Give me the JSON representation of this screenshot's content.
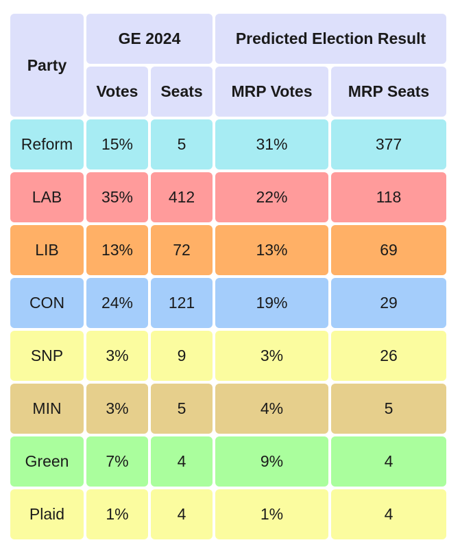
{
  "header": {
    "party": "Party",
    "ge_group": "GE 2024",
    "predicted_group": "Predicted Election Result",
    "votes": "Votes",
    "seats": "Seats",
    "mrp_votes": "MRP Votes",
    "mrp_seats": "MRP Seats"
  },
  "rows": [
    {
      "party": "Reform",
      "votes": "15%",
      "seats": "5",
      "mrp_votes": "31%",
      "mrp_seats": "377",
      "color": "#a7ecf3"
    },
    {
      "party": "LAB",
      "votes": "35%",
      "seats": "412",
      "mrp_votes": "22%",
      "mrp_seats": "118",
      "color": "#ff9b9b"
    },
    {
      "party": "LIB",
      "votes": "13%",
      "seats": "72",
      "mrp_votes": "13%",
      "mrp_seats": "69",
      "color": "#ffb066"
    },
    {
      "party": "CON",
      "votes": "24%",
      "seats": "121",
      "mrp_votes": "19%",
      "mrp_seats": "29",
      "color": "#a4cdfb"
    },
    {
      "party": "SNP",
      "votes": "3%",
      "seats": "9",
      "mrp_votes": "3%",
      "mrp_seats": "26",
      "color": "#fbfc9f"
    },
    {
      "party": "MIN",
      "votes": "3%",
      "seats": "5",
      "mrp_votes": "4%",
      "mrp_seats": "5",
      "color": "#e6cf8c"
    },
    {
      "party": "Green",
      "votes": "7%",
      "seats": "4",
      "mrp_votes": "9%",
      "mrp_seats": "4",
      "color": "#aafe9d"
    },
    {
      "party": "Plaid",
      "votes": "1%",
      "seats": "4",
      "mrp_votes": "1%",
      "mrp_seats": "4",
      "color": "#fbfc9f"
    }
  ],
  "colors": {
    "header_bg": "#dde0fb"
  }
}
